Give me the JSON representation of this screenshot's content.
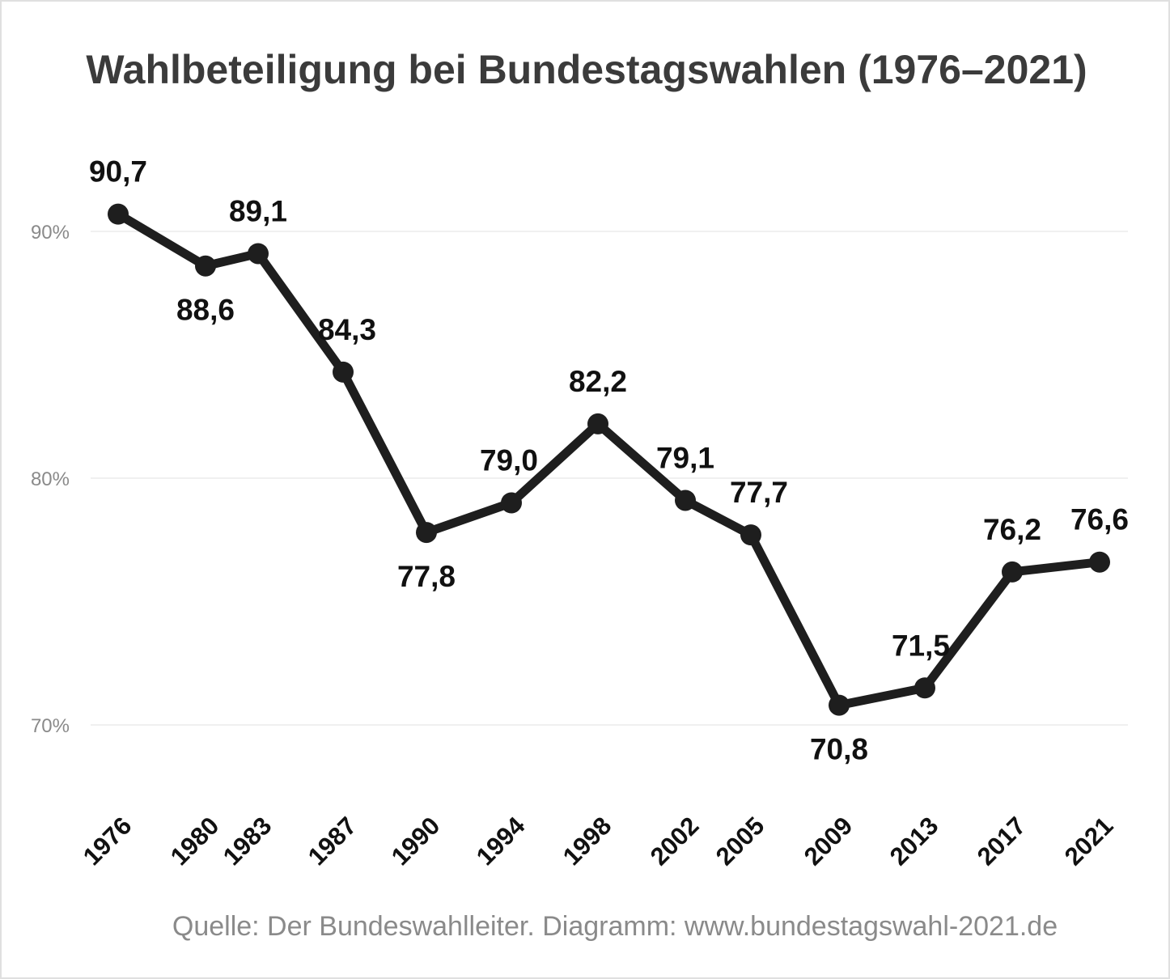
{
  "chart_data": {
    "type": "line",
    "title": "Wahlbeteiligung bei Bundestagswahlen (1976–2021)",
    "categories": [
      "1976",
      "1980",
      "1983",
      "1987",
      "1990",
      "1994",
      "1998",
      "2002",
      "2005",
      "2009",
      "2013",
      "2017",
      "2021"
    ],
    "values": [
      90.7,
      88.6,
      89.1,
      84.3,
      77.8,
      79.0,
      82.2,
      79.1,
      77.7,
      70.8,
      71.5,
      76.2,
      76.6
    ],
    "data_labels": [
      "90,7",
      "88,6",
      "89,1",
      "84,3",
      "77,8",
      "79,0",
      "82,2",
      "79,1",
      "77,7",
      "70,8",
      "71,5",
      "76,2",
      "76,6"
    ],
    "yticks": [
      70,
      80,
      90
    ],
    "ytick_labels": [
      "70%",
      "80%",
      "90%"
    ],
    "grid": true,
    "line_color": "#1e1e1e",
    "xlabel": "",
    "ylabel": ""
  },
  "source": "Quelle: Der Bundeswahlleiter. Diagramm: www.bundestagswahl-2021.de"
}
